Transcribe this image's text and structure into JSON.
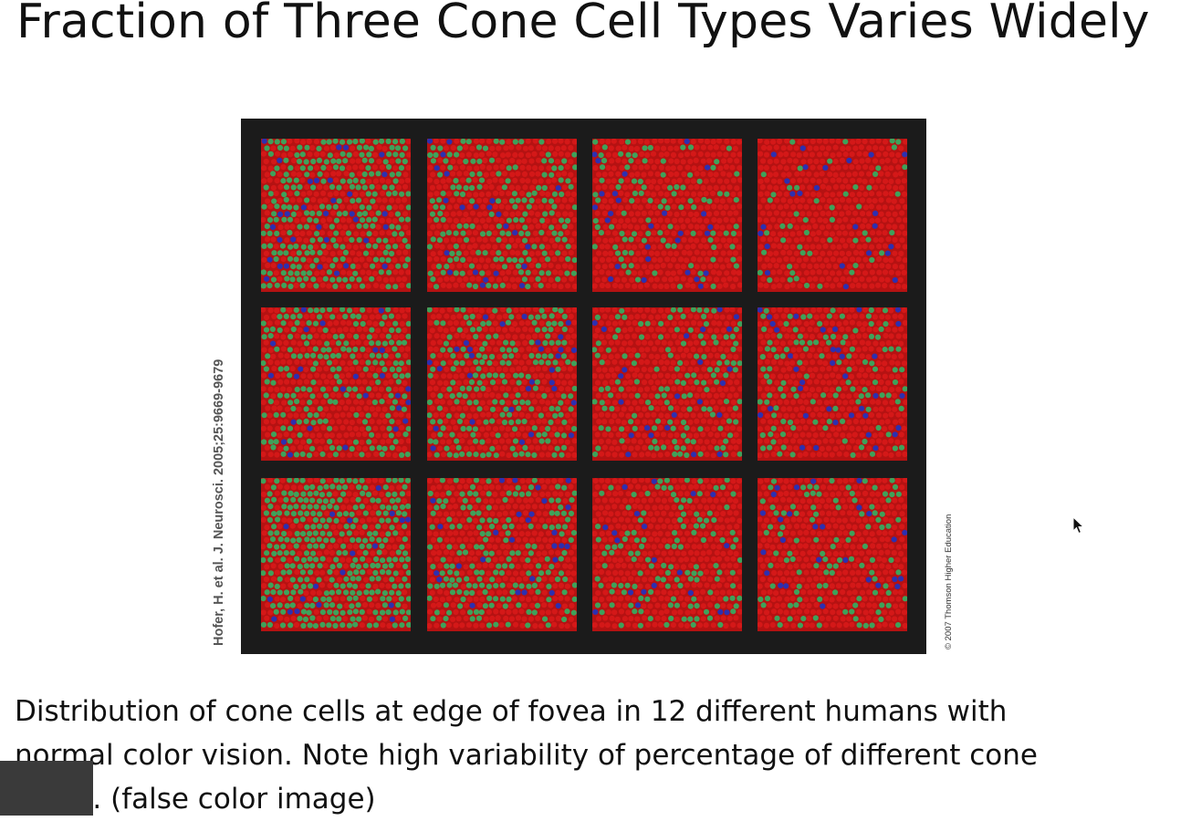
{
  "slide": {
    "title": "Fraction of Three Cone Cell Types Varies Widely",
    "caption_lines": [
      "Distribution of cone cells at edge of fovea in 12 different humans with",
      "normal color vision. Note high variability of percentage of different cone",
      "types. (false color image)"
    ],
    "credit_left": "Hofer, H. et al. J. Neurosci. 2005;25:9669-9679",
    "credit_right": "© 2007 Thomson Higher Education"
  },
  "figure": {
    "rows": 3,
    "cols": 4,
    "panel_count": 12,
    "colors": {
      "red_cone": "#d41818",
      "green_cone": "#3fa15a",
      "blue_cone": "#2d2fb0",
      "gap": "#1b1b1b"
    },
    "green_fraction": [
      0.55,
      0.35,
      0.2,
      0.1,
      0.4,
      0.4,
      0.25,
      0.25,
      0.6,
      0.35,
      0.25,
      0.2
    ]
  }
}
